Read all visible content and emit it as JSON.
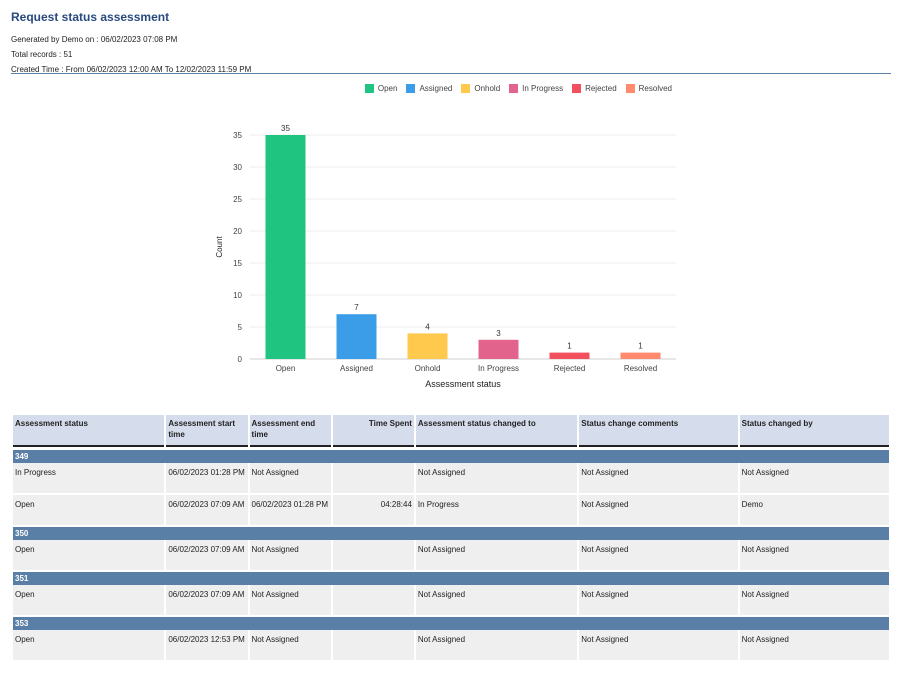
{
  "report": {
    "title": "Request status assessment",
    "generated_by": "Generated by Demo on : 06/02/2023 07:08 PM",
    "total_records": "Total records : 51",
    "created_time": "Created Time : From 06/02/2023 12:00 AM To 12/02/2023 11:59 PM"
  },
  "legend": [
    {
      "label": "Open",
      "color": "#1ec47f"
    },
    {
      "label": "Assigned",
      "color": "#3b9de8"
    },
    {
      "label": "Onhold",
      "color": "#ffc94d"
    },
    {
      "label": "In Progress",
      "color": "#e2648c"
    },
    {
      "label": "Rejected",
      "color": "#f2505d"
    },
    {
      "label": "Resolved",
      "color": "#ff8a6e"
    }
  ],
  "chart_data": {
    "type": "bar",
    "categories": [
      "Open",
      "Assigned",
      "Onhold",
      "In Progress",
      "Rejected",
      "Resolved"
    ],
    "values": [
      35,
      7,
      4,
      3,
      1,
      1
    ],
    "colors": [
      "#1ec47f",
      "#3b9de8",
      "#ffc94d",
      "#e2648c",
      "#f2505d",
      "#ff8a6e"
    ],
    "xlabel": "Assessment status",
    "ylabel": "Count",
    "ylim": [
      0,
      35
    ],
    "yticks": [
      0,
      5,
      10,
      15,
      20,
      25,
      30,
      35
    ],
    "grid": true,
    "legend": "top-right"
  },
  "table": {
    "headers": [
      "Assessment status",
      "Assessment start time",
      "Assessment end time",
      "Time Spent",
      "Assessment status changed to",
      "Status change comments",
      "Status changed by"
    ],
    "groups": [
      {
        "id": "349",
        "rows": [
          [
            "In Progress",
            "06/02/2023 01:28 PM",
            "Not Assigned",
            "",
            "Not Assigned",
            "Not Assigned",
            "Not Assigned"
          ],
          [
            "Open",
            "06/02/2023 07:09 AM",
            "06/02/2023 01:28 PM",
            "04:28:44",
            "In Progress",
            "Not Assigned",
            "Demo"
          ]
        ]
      },
      {
        "id": "350",
        "rows": [
          [
            "Open",
            "06/02/2023 07:09 AM",
            "Not Assigned",
            "",
            "Not Assigned",
            "Not Assigned",
            "Not Assigned"
          ]
        ]
      },
      {
        "id": "351",
        "rows": [
          [
            "Open",
            "06/02/2023 07:09 AM",
            "Not Assigned",
            "",
            "Not Assigned",
            "Not Assigned",
            "Not Assigned"
          ]
        ]
      },
      {
        "id": "353",
        "rows": [
          [
            "Open",
            "06/02/2023 12:53 PM",
            "Not Assigned",
            "",
            "Not Assigned",
            "Not Assigned",
            "Not Assigned"
          ]
        ]
      }
    ]
  }
}
